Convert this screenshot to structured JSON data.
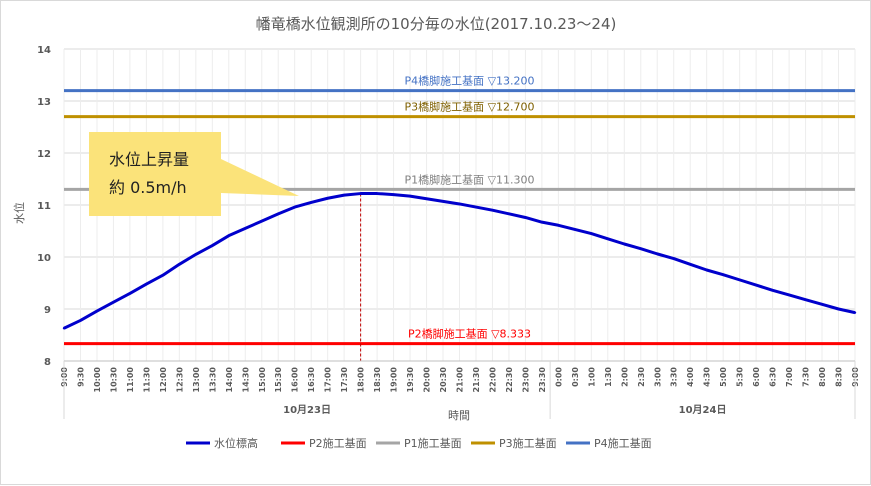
{
  "chart_data": {
    "type": "line",
    "title": "幡竜橋水位観測所の10分毎の水位(2017.10.23～24)",
    "ylabel": "水位",
    "xlabel": "時間",
    "ylim": [
      8,
      14
    ],
    "yticks": [
      "8",
      "9",
      "10",
      "11",
      "12",
      "13",
      "14"
    ],
    "date_labels": [
      "10月23日",
      "10月24日"
    ],
    "x_tick_labels": [
      "9:00",
      "9:30",
      "10:00",
      "10:30",
      "11:00",
      "11:30",
      "12:00",
      "12:30",
      "13:00",
      "13:30",
      "14:00",
      "14:30",
      "15:00",
      "15:30",
      "16:00",
      "16:30",
      "17:00",
      "17:30",
      "18:00",
      "18:30",
      "19:00",
      "19:30",
      "20:00",
      "20:30",
      "21:00",
      "21:30",
      "22:00",
      "22:30",
      "23:00",
      "23:30",
      "0:00",
      "0:30",
      "1:00",
      "1:30",
      "2:00",
      "2:30",
      "3:00",
      "3:30",
      "4:00",
      "4:30",
      "5:00",
      "5:30",
      "6:00",
      "6:30",
      "7:00",
      "7:30",
      "8:00",
      "8:30",
      "9:00"
    ],
    "series": [
      {
        "name": "水位標高",
        "color": "#0000cc",
        "x": [
          "9:00",
          "9:30",
          "10:00",
          "10:30",
          "11:00",
          "11:30",
          "12:00",
          "12:30",
          "13:00",
          "13:30",
          "14:00",
          "14:30",
          "15:00",
          "15:30",
          "16:00",
          "16:30",
          "17:00",
          "17:30",
          "18:00",
          "18:30",
          "19:00",
          "19:30",
          "20:00",
          "20:30",
          "21:00",
          "21:30",
          "22:00",
          "22:30",
          "23:00",
          "23:30",
          "0:00",
          "0:30",
          "1:00",
          "1:30",
          "2:00",
          "2:30",
          "3:00",
          "3:30",
          "4:00",
          "4:30",
          "5:00",
          "5:30",
          "6:00",
          "6:30",
          "7:00",
          "7:30",
          "8:00",
          "8:30",
          "9:00"
        ],
        "values": [
          8.63,
          8.78,
          8.96,
          9.13,
          9.3,
          9.48,
          9.65,
          9.86,
          10.05,
          10.22,
          10.41,
          10.55,
          10.69,
          10.83,
          10.96,
          11.05,
          11.13,
          11.19,
          11.22,
          11.22,
          11.2,
          11.17,
          11.12,
          11.07,
          11.02,
          10.96,
          10.9,
          10.83,
          10.76,
          10.67,
          10.61,
          10.53,
          10.45,
          10.35,
          10.25,
          10.16,
          10.06,
          9.97,
          9.86,
          9.75,
          9.66,
          9.56,
          9.46,
          9.36,
          9.27,
          9.18,
          9.09,
          9.0,
          8.93
        ]
      },
      {
        "name": "P2施工基面",
        "color": "#ff0000",
        "value": 8.333
      },
      {
        "name": "P1施工基面",
        "color": "#a5a5a5",
        "value": 11.3
      },
      {
        "name": "P3施工基面",
        "color": "#bf9000",
        "value": 12.7
      },
      {
        "name": "P4施工基面",
        "color": "#4472c4",
        "value": 13.2
      }
    ],
    "reference_labels": [
      {
        "text": "P4橋脚施工基面 ▽13.200",
        "value": 13.2,
        "color": "#4472c4"
      },
      {
        "text": "P3橋脚施工基面 ▽12.700",
        "value": 12.7,
        "color": "#7f6000"
      },
      {
        "text": "P1橋脚施工基面 ▽11.300",
        "value": 11.3,
        "color": "#808080"
      },
      {
        "text": "P2橋脚施工基面 ▽8.333",
        "value": 8.333,
        "color": "#ff0000"
      }
    ],
    "peak_marker_x": "18:00",
    "legend_position": "bottom",
    "grid": true,
    "annotation": {
      "line1": "水位上昇量",
      "line2": "約 0.5m/h"
    }
  }
}
